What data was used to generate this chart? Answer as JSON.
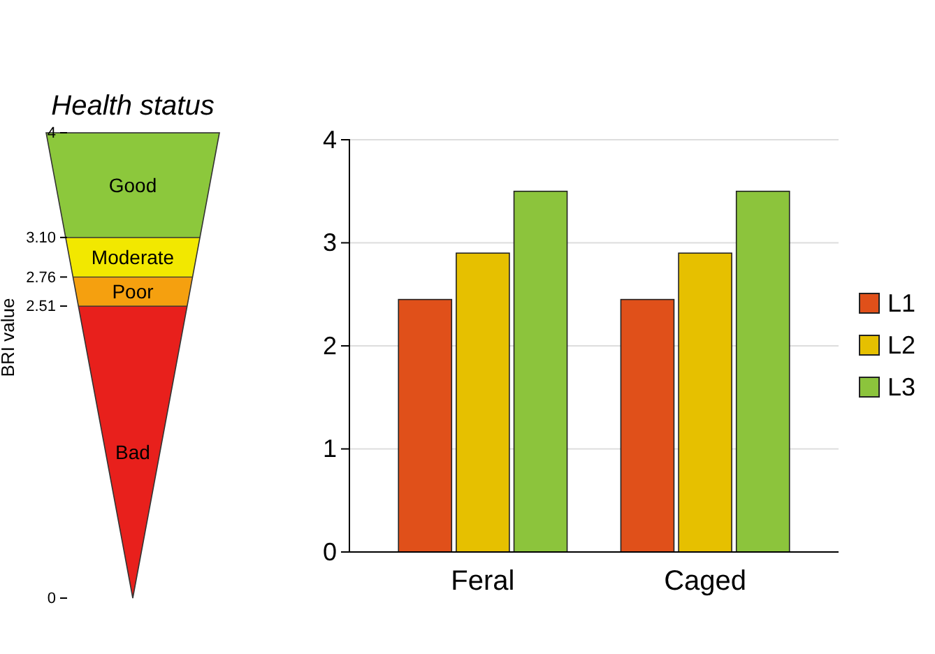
{
  "chart_data": [
    {
      "type": "bar",
      "stacked": true,
      "title": "Health status",
      "ylabel": "BRI value",
      "categories": [
        null
      ],
      "ylim": [
        0,
        4
      ],
      "yticks": [
        0,
        2.51,
        2.76,
        {
          "value": 3.1,
          "label": "3.10"
        },
        4
      ],
      "series": [
        {
          "name": "Bad",
          "color": "#e8201c",
          "values": [
            2.51
          ]
        },
        {
          "name": "Poor",
          "color": "#f5a00f",
          "values": [
            0.25
          ]
        },
        {
          "name": "Moderate",
          "color": "#f2e800",
          "values": [
            0.34
          ]
        },
        {
          "name": "Good",
          "color": "#8cc83c",
          "values": [
            0.9
          ]
        }
      ]
    },
    {
      "type": "bar",
      "categories": [
        "Feral",
        "Caged"
      ],
      "ylim": [
        0,
        4
      ],
      "yticks": [
        0,
        1,
        2,
        3,
        4
      ],
      "grid": "y",
      "legend": "right",
      "series": [
        {
          "name": "L1",
          "color": "#e0501a",
          "values": [
            2.45,
            2.45
          ]
        },
        {
          "name": "L2",
          "color": "#e6c000",
          "values": [
            2.9,
            2.9
          ]
        },
        {
          "name": "L3",
          "color": "#8cc43c",
          "values": [
            3.5,
            3.5
          ]
        }
      ]
    }
  ]
}
